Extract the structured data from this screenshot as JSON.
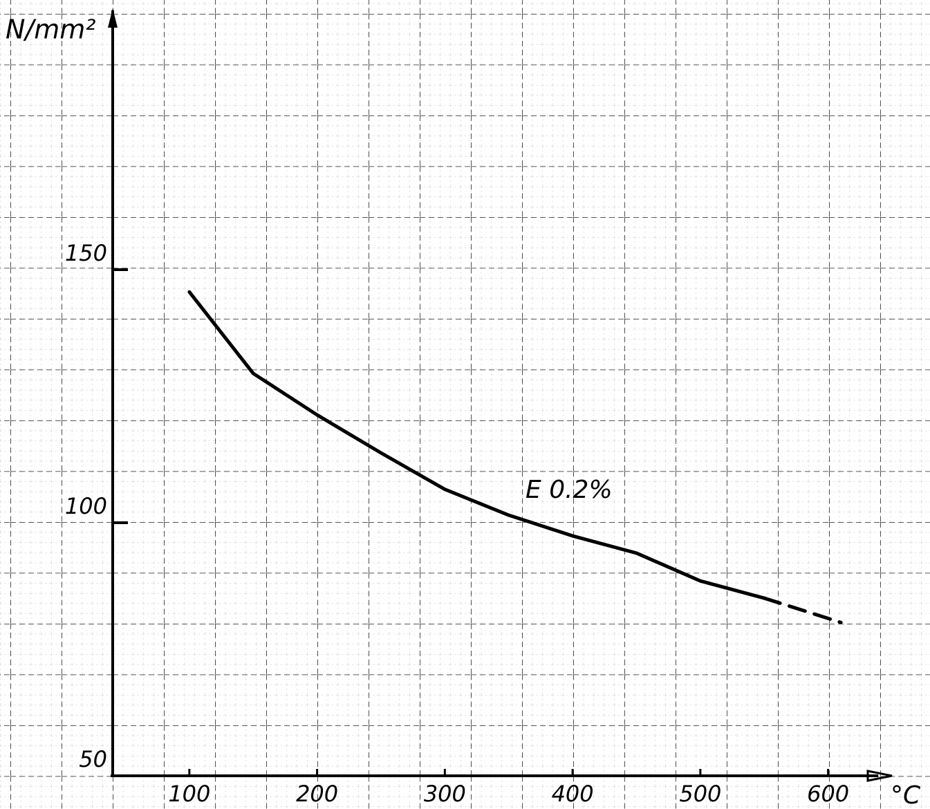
{
  "chart_data": {
    "type": "line",
    "ylabel": "N/mm²",
    "xlabel": "°C",
    "annotation": "E 0.2%",
    "x": [
      100,
      150,
      200,
      250,
      300,
      350,
      400,
      450,
      500,
      550,
      610
    ],
    "series": [
      {
        "name": "E 0.2%",
        "color": "#000000",
        "dashed": false,
        "values": [
          145.6,
          129.5,
          121.3,
          113.8,
          106.6,
          101.5,
          97.4,
          94,
          88.5,
          85.1,
          null
        ]
      },
      {
        "color": "#000000",
        "dashed": true,
        "values": [
          null,
          null,
          null,
          null,
          null,
          null,
          null,
          null,
          null,
          85.1,
          80.3
        ]
      }
    ],
    "xlim": [
      40,
      650
    ],
    "ylim": [
      50,
      200
    ],
    "xticks": [
      100,
      200,
      300,
      400,
      500,
      600
    ],
    "yticks": [
      50,
      100,
      150
    ]
  }
}
